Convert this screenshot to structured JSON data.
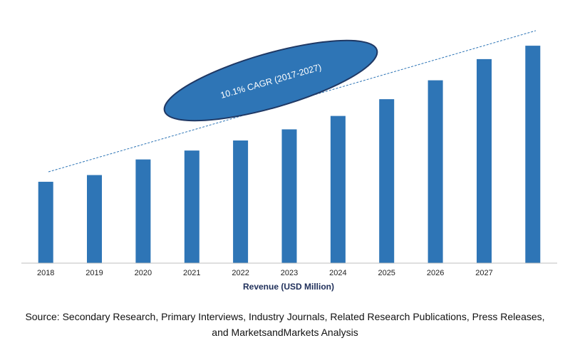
{
  "chart_data": {
    "type": "bar",
    "title": "",
    "xlabel": "Revenue (USD Million)",
    "ylabel": "",
    "categories": [
      "2018",
      "2019",
      "2020",
      "2021",
      "2022",
      "2023",
      "2024",
      "2025",
      "2026",
      "2027",
      ""
    ],
    "values": [
      36.5,
      39.5,
      46.5,
      50.5,
      55.0,
      60.0,
      66.0,
      73.5,
      82.0,
      91.5,
      97.5
    ],
    "ylim": [
      0,
      110
    ],
    "grid": false,
    "bar_color": "#2e75b6",
    "annotation": {
      "text": "10.1% CAGR (2017-2027)",
      "fill": "#2e75b6",
      "stroke": "#1f3864"
    },
    "trend_line_color": "#2e75b6"
  },
  "source": {
    "line1": "Source: Secondary Research, Primary Interviews, Industry Journals, Related Research Publications, Press Releases,",
    "line2": "and MarketsandMarkets Analysis"
  }
}
